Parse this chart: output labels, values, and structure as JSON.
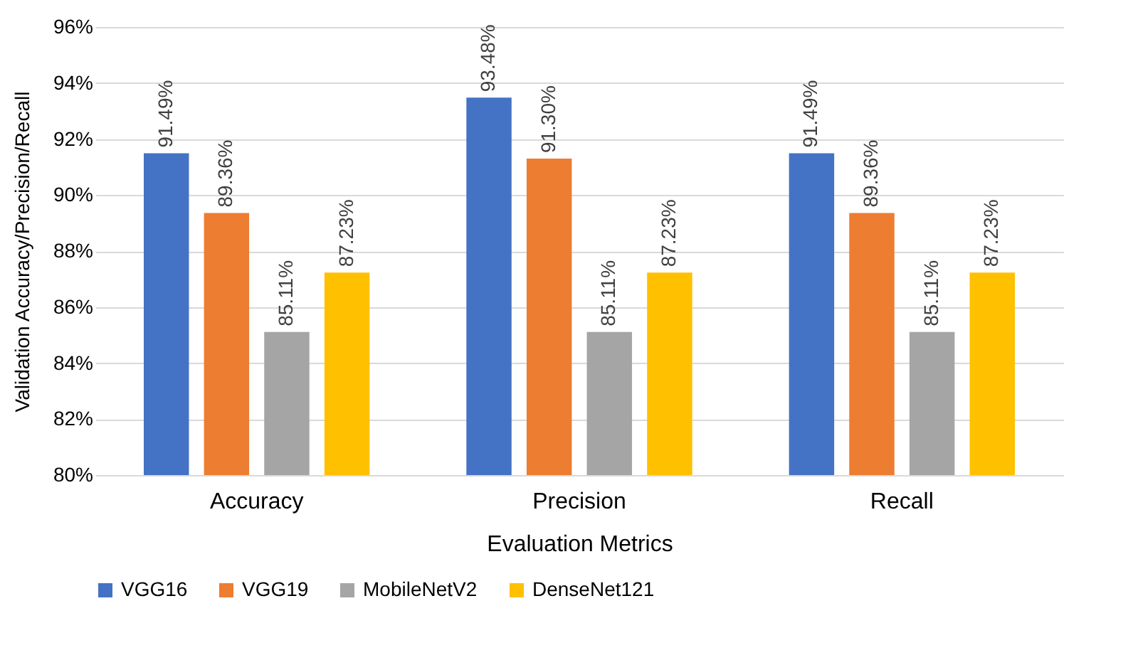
{
  "chart_data": {
    "type": "bar",
    "xlabel": "Evaluation Metrics",
    "ylabel": "Validation Accuracy/Precision/Recall",
    "categories": [
      "Accuracy",
      "Precision",
      "Recall"
    ],
    "series": [
      {
        "name": "VGG16",
        "color": "#4472c4",
        "values": [
          91.49,
          93.48,
          91.49
        ],
        "value_labels": [
          "91.49%",
          "93.48%",
          "91.49%"
        ]
      },
      {
        "name": "VGG19",
        "color": "#ed7d31",
        "values": [
          89.36,
          91.3,
          89.36
        ],
        "value_labels": [
          "89.36%",
          "91.30%",
          "89.36%"
        ]
      },
      {
        "name": "MobileNetV2",
        "color": "#a5a5a5",
        "values": [
          85.11,
          85.11,
          85.11
        ],
        "value_labels": [
          "85.11%",
          "85.11%",
          "85.11%"
        ]
      },
      {
        "name": "DenseNet121",
        "color": "#ffc000",
        "values": [
          87.23,
          87.23,
          87.23
        ],
        "value_labels": [
          "87.23%",
          "87.23%",
          "87.23%"
        ]
      }
    ],
    "ylim": [
      80,
      96
    ],
    "yticks": [
      {
        "value": 80,
        "label": "80%"
      },
      {
        "value": 82,
        "label": "82%"
      },
      {
        "value": 84,
        "label": "84%"
      },
      {
        "value": 86,
        "label": "86%"
      },
      {
        "value": 88,
        "label": "88%"
      },
      {
        "value": 90,
        "label": "90%"
      },
      {
        "value": 92,
        "label": "92%"
      },
      {
        "value": 94,
        "label": "94%"
      },
      {
        "value": 96,
        "label": "96%"
      }
    ],
    "grid": "y",
    "legend": "bottom"
  }
}
